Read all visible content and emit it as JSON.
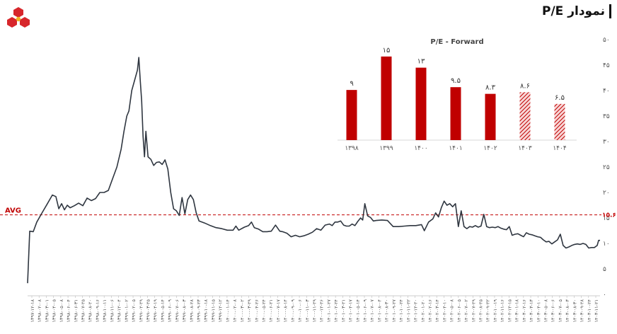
{
  "title": "نمودار P/E",
  "logo_icon": "red-hexagon-cluster-logo",
  "colors": {
    "line": "#2f3640",
    "avg": "#c00000",
    "bar": "#c00000",
    "axis": "#555555"
  },
  "main_chart": {
    "type": "line",
    "ylim": [
      0,
      50
    ],
    "yticks": [
      "۰",
      "۵",
      "۱۰",
      "۱۵",
      "۲۰",
      "۲۵",
      "۳۰",
      "۳۵",
      "۴۰",
      "۴۵",
      "۵۰"
    ],
    "avg_label": "AVG",
    "avg_value": 15.6,
    "avg_value_label": "۱۵.۶",
    "x_labels": [
      "۱۳۹۷-۱۲-۱۸",
      "۱۳۹۸-۰۲-۰۸",
      "۱۳۹۸-۰۳-۰۱",
      "۱۳۹۸-۰۴-۰۵",
      "۱۳۹۸-۰۵-۰۸",
      "۱۳۹۸-۰۶-۰۴",
      "۱۳۹۸-۰۶-۳۱",
      "۱۳۹۸-۰۷-۲۵",
      "۱۳۹۸-۰۸-۲۰",
      "۱۳۹۸-۰۹-۱۶",
      "۱۳۹۸-۱۰-۱۱",
      "۱۳۹۸-۱۱-۰۶",
      "۱۳۹۸-۱۲-۰۴",
      "۱۳۹۹-۰۱-۰۲",
      "۱۳۹۹-۰۲-۰۵",
      "۱۳۹۹-۰۲-۲۹",
      "۱۳۹۹-۰۳-۲۵",
      "۱۳۹۹-۰۴-۱۹",
      "۱۳۹۹-۰۵-۱۴",
      "۱۳۹۹-۰۶-۰۹",
      "۱۳۹۹-۰۷-۰۶",
      "۱۳۹۹-۰۸-۰۳",
      "۱۳۹۹-۰۸-۲۸",
      "۱۳۹۹-۰۹-۲۳",
      "۱۳۹۹-۱۰-۱۸",
      "۱۳۹۹-۱۱-۱۵",
      "۱۳۹۹-۱۲-۱۲",
      "۱۴۰۰-۰۱-۱۴",
      "۱۴۰۰-۰۲-۰۸",
      "۱۴۰۰-۰۳-۰۲",
      "۱۴۰۰-۰۳-۲۹",
      "۱۴۰۰-۰۴-۲۶",
      "۱۴۰۰-۰۵-۲۴",
      "۱۴۰۰-۰۶-۲۱",
      "۱۴۰۰-۰۷-۱۷",
      "۱۴۰۰-۰۸-۱۴",
      "۱۴۰۰-۰۹-۰۹",
      "۱۴۰۰-۱۰-۰۶",
      "۱۴۰۰-۱۱-۰۳",
      "۱۴۰۰-۱۱-۲۹",
      "۱۴۰۰-۱۲-۲۶",
      "۱۴۰۱-۰۱-۲۷",
      "۱۴۰۱-۰۲-۲۴",
      "۱۴۰۱-۰۳-۲۱",
      "۱۴۰۱-۰۴-۱۷",
      "۱۴۰۱-۰۵-۱۴",
      "۱۴۰۱-۰۶-۰۹",
      "۱۴۰۱-۰۷-۰۷",
      "۱۴۰۱-۰۸-۰۴",
      "۱۴۰۱-۰۸-۳۰",
      "۱۴۰۱-۰۹-۲۷",
      "۱۴۰۱-۱۰-۲۴",
      "۱۴۰۱-۱۱-۲۲",
      "۱۴۰۱-۱۲-۲۰",
      "۱۴۰۲-۰۱-۲۰",
      "۱۴۰۲-۰۲-۱۶",
      "۱۴۰۲-۰۳-۱۴",
      "۱۴۰۲-۰۴-۱۰",
      "۱۴۰۲-۰۵-۰۸",
      "۱۴۰۲-۰۶-۰۵",
      "۱۴۰۲-۰۷-۰۲",
      "۱۴۰۲-۰۷-۲۹",
      "۱۴۰۲-۰۸-۲۵",
      "۱۴۰۲-۰۹-۲۲",
      "۱۴۰۲-۱۰-۱۹",
      "۱۴۰۲-۱۱-۱۶",
      "۱۴۰۲-۱۲-۱۵",
      "۱۴۰۳-۰۱-۱۸",
      "۱۴۰۳-۰۲-۱۶",
      "۱۴۰۳-۰۳-۱۳",
      "۱۴۰۳-۰۴-۱۰",
      "۱۴۰۳-۰۵-۰۸",
      "۱۴۰۳-۰۶-۰۶",
      "۱۴۰۳-۰۷-۰۵",
      "۱۴۰۳-۰۸-۰۳",
      "۱۴۰۳-۰۸-۳۰",
      "۱۴۰۳-۰۹-۲۸",
      "۱۴۰۳-۱۰-۲۴",
      "۱۴۰۳-۱۱-۲۱"
    ],
    "series_points": [
      [
        0,
        2.2
      ],
      [
        3,
        12.4
      ],
      [
        8,
        12.3
      ],
      [
        13,
        14.2
      ],
      [
        20,
        15.9
      ],
      [
        28,
        17.8
      ],
      [
        35,
        19.5
      ],
      [
        40,
        19.2
      ],
      [
        44,
        16.8
      ],
      [
        48,
        17.8
      ],
      [
        52,
        16.6
      ],
      [
        56,
        17.5
      ],
      [
        60,
        17
      ],
      [
        66,
        17.4
      ],
      [
        72,
        17.9
      ],
      [
        78,
        17.4
      ],
      [
        84,
        18.9
      ],
      [
        90,
        18.4
      ],
      [
        96,
        18.8
      ],
      [
        102,
        20
      ],
      [
        108,
        20
      ],
      [
        114,
        20.4
      ],
      [
        120,
        22.7
      ],
      [
        126,
        25
      ],
      [
        132,
        28.5
      ],
      [
        136,
        32
      ],
      [
        140,
        35
      ],
      [
        143,
        36
      ],
      [
        147,
        40
      ],
      [
        151,
        42
      ],
      [
        155,
        44
      ],
      [
        157,
        46.5
      ],
      [
        159,
        42
      ],
      [
        161,
        38
      ],
      [
        163,
        31
      ],
      [
        165,
        27
      ],
      [
        167,
        32
      ],
      [
        170,
        27
      ],
      [
        174,
        26.5
      ],
      [
        178,
        25.3
      ],
      [
        182,
        25.9
      ],
      [
        186,
        26
      ],
      [
        190,
        25.5
      ],
      [
        194,
        26.4
      ],
      [
        198,
        24.6
      ],
      [
        202,
        20
      ],
      [
        206,
        16.8
      ],
      [
        210,
        16.4
      ],
      [
        214,
        15.5
      ],
      [
        218,
        19
      ],
      [
        222,
        15.8
      ],
      [
        226,
        18.6
      ],
      [
        230,
        19.5
      ],
      [
        234,
        18.6
      ],
      [
        238,
        16
      ],
      [
        242,
        14.4
      ],
      [
        250,
        14
      ],
      [
        258,
        13.5
      ],
      [
        266,
        13.1
      ],
      [
        274,
        12.9
      ],
      [
        282,
        12.6
      ],
      [
        290,
        12.6
      ],
      [
        294,
        13.4
      ],
      [
        298,
        12.6
      ],
      [
        306,
        13.2
      ],
      [
        312,
        13.5
      ],
      [
        316,
        14.2
      ],
      [
        320,
        13.1
      ],
      [
        326,
        12.8
      ],
      [
        332,
        12.3
      ],
      [
        338,
        12.3
      ],
      [
        344,
        12.4
      ],
      [
        350,
        13.6
      ],
      [
        356,
        12.4
      ],
      [
        360,
        12.3
      ],
      [
        366,
        12
      ],
      [
        372,
        11.3
      ],
      [
        378,
        11.6
      ],
      [
        384,
        11.3
      ],
      [
        390,
        11.5
      ],
      [
        396,
        11.8
      ],
      [
        402,
        12.2
      ],
      [
        408,
        12.9
      ],
      [
        414,
        12.6
      ],
      [
        420,
        13.6
      ],
      [
        426,
        13.8
      ],
      [
        430,
        13.5
      ],
      [
        434,
        14.2
      ],
      [
        438,
        14.2
      ],
      [
        442,
        14.4
      ],
      [
        446,
        13.6
      ],
      [
        450,
        13.4
      ],
      [
        454,
        13.4
      ],
      [
        458,
        13.8
      ],
      [
        462,
        13.5
      ],
      [
        466,
        14.3
      ],
      [
        470,
        15
      ],
      [
        473,
        14.6
      ],
      [
        476,
        17.8
      ],
      [
        480,
        15.4
      ],
      [
        484,
        15.1
      ],
      [
        488,
        14.4
      ],
      [
        492,
        14.5
      ],
      [
        500,
        14.6
      ],
      [
        508,
        14.5
      ],
      [
        516,
        13.3
      ],
      [
        524,
        13.3
      ],
      [
        532,
        13.4
      ],
      [
        540,
        13.5
      ],
      [
        548,
        13.5
      ],
      [
        556,
        13.7
      ],
      [
        560,
        12.5
      ],
      [
        566,
        14.2
      ],
      [
        572,
        14.8
      ],
      [
        576,
        16
      ],
      [
        580,
        15.2
      ],
      [
        584,
        17
      ],
      [
        588,
        18.3
      ],
      [
        592,
        17.5
      ],
      [
        596,
        17.8
      ],
      [
        600,
        17.2
      ],
      [
        604,
        17.8
      ],
      [
        608,
        13.3
      ],
      [
        612,
        16.4
      ],
      [
        616,
        13.3
      ],
      [
        620,
        12.9
      ],
      [
        624,
        13.3
      ],
      [
        628,
        13.2
      ],
      [
        632,
        13.5
      ],
      [
        636,
        13.2
      ],
      [
        640,
        13.4
      ],
      [
        644,
        15.7
      ],
      [
        648,
        13.3
      ],
      [
        652,
        13.1
      ],
      [
        656,
        13.2
      ],
      [
        660,
        13.1
      ],
      [
        664,
        13.3
      ],
      [
        668,
        13
      ],
      [
        672,
        12.8
      ],
      [
        676,
        12.7
      ],
      [
        680,
        13.3
      ],
      [
        684,
        11.6
      ],
      [
        688,
        11.8
      ],
      [
        692,
        11.9
      ],
      [
        696,
        11.6
      ],
      [
        700,
        11.3
      ],
      [
        704,
        12.1
      ],
      [
        708,
        11.8
      ],
      [
        712,
        11.7
      ],
      [
        716,
        11.5
      ],
      [
        720,
        11.3
      ],
      [
        724,
        11.2
      ],
      [
        728,
        10.7
      ],
      [
        732,
        10.3
      ],
      [
        736,
        10.4
      ],
      [
        740,
        9.9
      ],
      [
        744,
        10.3
      ],
      [
        748,
        10.7
      ],
      [
        752,
        11.8
      ],
      [
        756,
        9.6
      ],
      [
        760,
        9.1
      ],
      [
        764,
        9.3
      ],
      [
        768,
        9.6
      ],
      [
        772,
        9.8
      ],
      [
        776,
        9.9
      ],
      [
        780,
        9.8
      ],
      [
        784,
        10
      ],
      [
        788,
        9.8
      ],
      [
        792,
        9.1
      ],
      [
        796,
        9.2
      ],
      [
        800,
        9.2
      ],
      [
        804,
        9.6
      ],
      [
        806,
        10.6
      ],
      [
        808,
        10.6
      ]
    ]
  },
  "inset_chart": {
    "type": "bar",
    "title": "P/E - Forward",
    "categories": [
      "۱۳۹۸",
      "۱۳۹۹",
      "۱۴۰۰",
      "۱۴۰۱",
      "۱۴۰۲",
      "۱۴۰۳",
      "۱۴۰۴"
    ],
    "values": [
      9,
      15,
      13,
      9.5,
      8.3,
      8.6,
      6.5
    ],
    "value_labels": [
      "۹",
      "۱۵",
      "۱۳",
      "۹.۵",
      "۸.۳",
      "۸.۶",
      "۶.۵"
    ],
    "estimated": [
      false,
      false,
      false,
      false,
      false,
      true,
      true
    ],
    "ylim": [
      0,
      16
    ]
  }
}
